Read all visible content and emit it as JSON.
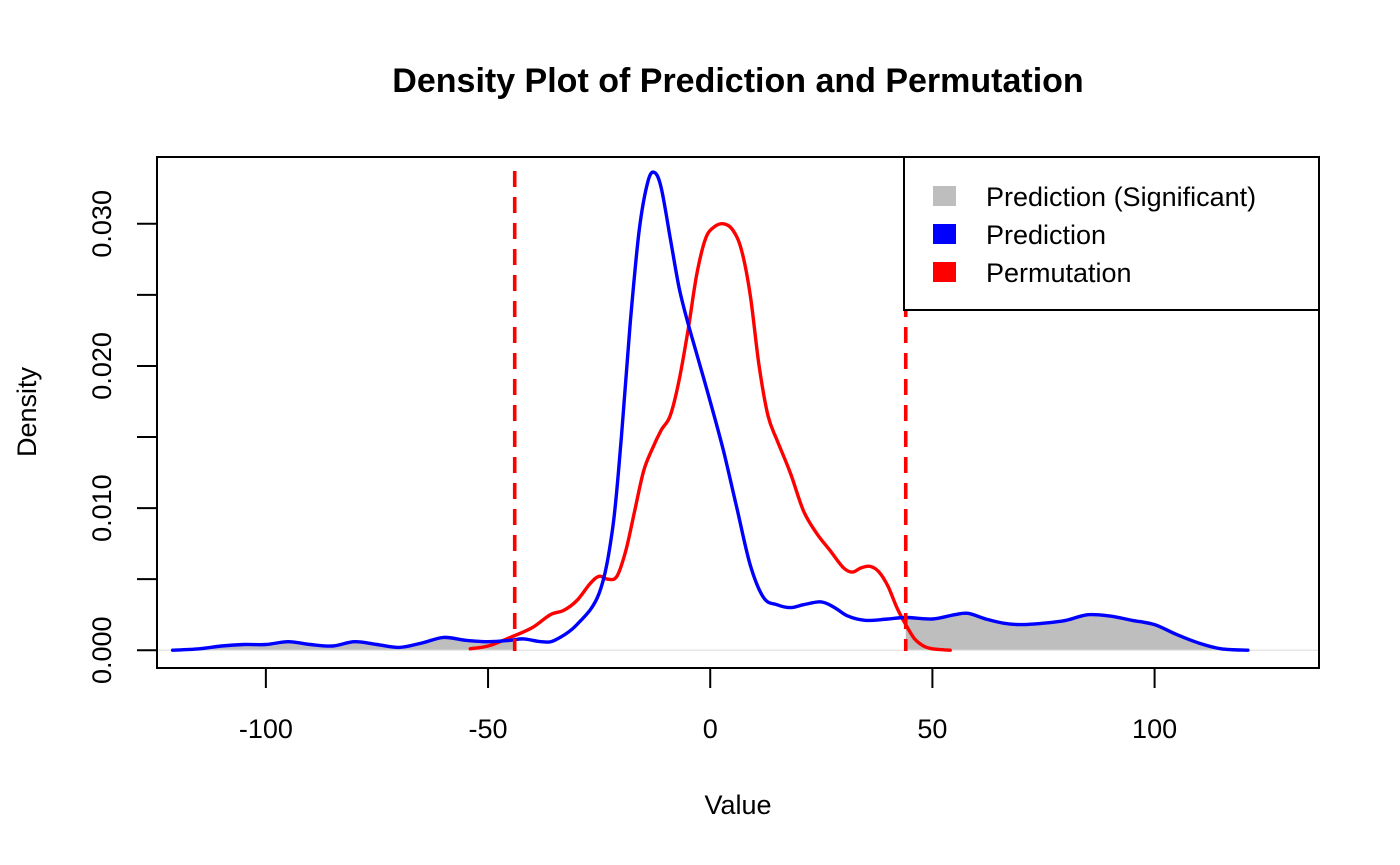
{
  "chart_data": {
    "type": "line",
    "title": "Density Plot of Prediction and Permutation",
    "xlabel": "Value",
    "ylabel": "Density",
    "xlim": [
      -124.5,
      137
    ],
    "ylim": [
      -0.00125,
      0.0347
    ],
    "x_ticks": [
      -100,
      -50,
      0,
      50,
      100
    ],
    "x_tick_labels": [
      "-100",
      "-50",
      "0",
      "50",
      "100"
    ],
    "y_ticks": [
      0,
      0.005,
      0.01,
      0.015,
      0.02,
      0.025,
      0.03
    ],
    "y_tick_labels": [
      "0.000",
      "",
      "0.010",
      "",
      "0.020",
      "",
      "0.030"
    ],
    "grid": false,
    "legend": {
      "position": "top-right",
      "items": [
        {
          "label": "Prediction (Significant)",
          "color": "#bebebe"
        },
        {
          "label": "Prediction",
          "color": "#0000ff"
        },
        {
          "label": "Permutation",
          "color": "#ff0000"
        }
      ]
    },
    "thresholds": {
      "values": [
        -44,
        44
      ],
      "color": "#ff0000",
      "style": "dashed"
    },
    "shaded_region": {
      "series": "Prediction",
      "condition": "abs(x) > 44",
      "color": "#bebebe"
    },
    "series": [
      {
        "name": "Prediction",
        "color": "#0000ff",
        "x": [
          -121,
          -115,
          -110,
          -105,
          -100,
          -95,
          -90,
          -85,
          -80,
          -75,
          -70,
          -65,
          -60,
          -55,
          -50,
          -45,
          -42,
          -38,
          -35,
          -30,
          -25,
          -22,
          -20,
          -18,
          -16,
          -14,
          -12.5,
          -11,
          -9,
          -7,
          -5,
          -3,
          0,
          3,
          6,
          9,
          12,
          15,
          18,
          21,
          25,
          28,
          31,
          35,
          40,
          44,
          50,
          55,
          58,
          62,
          66,
          70,
          75,
          80,
          85,
          90,
          95,
          100,
          105,
          110,
          115,
          121
        ],
        "y": [
          0.0,
          0.0001,
          0.0003,
          0.0004,
          0.0004,
          0.0006,
          0.0004,
          0.0003,
          0.0006,
          0.0004,
          0.0002,
          0.0005,
          0.0009,
          0.0007,
          0.0006,
          0.0007,
          0.0008,
          0.0006,
          0.0007,
          0.0018,
          0.004,
          0.0085,
          0.015,
          0.023,
          0.0295,
          0.033,
          0.0336,
          0.0325,
          0.029,
          0.0255,
          0.023,
          0.0208,
          0.0175,
          0.014,
          0.01,
          0.006,
          0.0037,
          0.0032,
          0.003,
          0.0032,
          0.0034,
          0.003,
          0.0024,
          0.0021,
          0.0022,
          0.0023,
          0.0022,
          0.0025,
          0.0026,
          0.0022,
          0.0019,
          0.0018,
          0.0019,
          0.0021,
          0.0025,
          0.0024,
          0.0021,
          0.0018,
          0.0011,
          0.0005,
          0.0001,
          0.0
        ]
      },
      {
        "name": "Permutation",
        "color": "#ff0000",
        "x": [
          -54,
          -50,
          -45,
          -40,
          -36,
          -33,
          -30,
          -27,
          -25,
          -23,
          -21,
          -19,
          -17,
          -15,
          -13,
          -11,
          -9,
          -7,
          -5,
          -3,
          -1,
          1,
          3,
          5,
          7,
          9,
          11,
          13,
          15,
          18,
          21,
          24,
          27,
          30,
          32,
          34,
          36,
          38,
          40,
          42,
          44,
          46,
          48,
          50,
          54
        ],
        "y": [
          0.0001,
          0.0003,
          0.0009,
          0.0016,
          0.0025,
          0.0028,
          0.0035,
          0.0047,
          0.0052,
          0.005,
          0.0052,
          0.007,
          0.0098,
          0.0126,
          0.0142,
          0.0155,
          0.0165,
          0.019,
          0.0225,
          0.0265,
          0.029,
          0.0298,
          0.03,
          0.0296,
          0.0282,
          0.025,
          0.02,
          0.0165,
          0.0148,
          0.0125,
          0.0098,
          0.0082,
          0.007,
          0.0058,
          0.0055,
          0.0058,
          0.0059,
          0.0055,
          0.0045,
          0.003,
          0.0018,
          0.0008,
          0.0003,
          0.0001,
          0.0
        ]
      }
    ]
  }
}
